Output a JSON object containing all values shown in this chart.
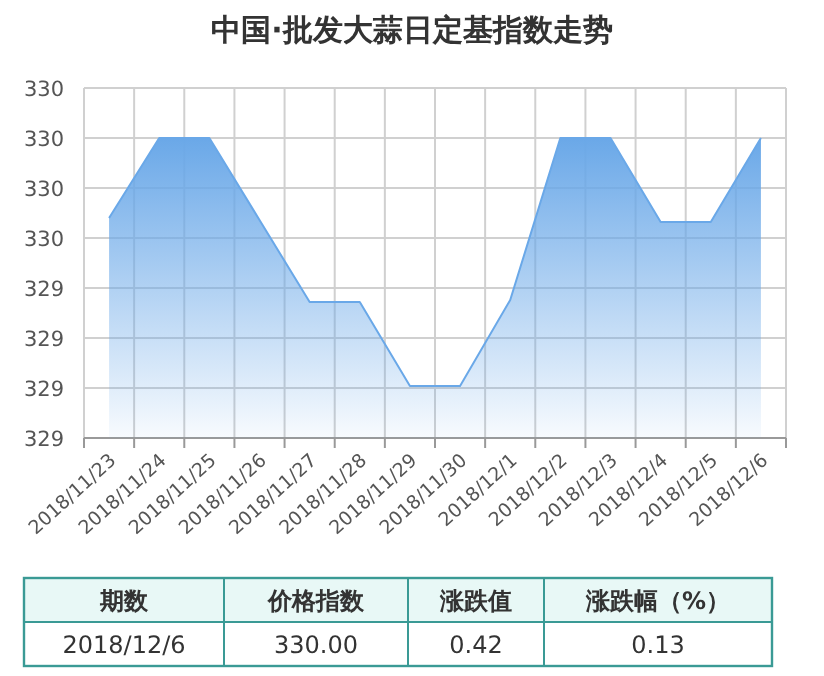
{
  "chart_data": {
    "type": "area",
    "title": "中国·批发大蒜日定基指数走势",
    "categories": [
      "2018/11/23",
      "2018/11/24",
      "2018/11/25",
      "2018/11/26",
      "2018/11/27",
      "2018/11/28",
      "2018/11/29",
      "2018/11/30",
      "2018/12/1",
      "2018/12/2",
      "2018/12/3",
      "2018/12/4",
      "2018/12/5",
      "2018/12/6"
    ],
    "series": [
      {
        "color": "#6aa8e8",
        "values": [
          329.6,
          330.0,
          330.0,
          329.59,
          329.18,
          329.18,
          328.76,
          328.76,
          329.19,
          330.0,
          330.0,
          329.58,
          329.58,
          330.0
        ]
      }
    ],
    "ylim": [
      328.5,
      330.25
    ],
    "yticks": [
      {
        "value": 328.5,
        "label": "329"
      },
      {
        "value": 328.75,
        "label": "329"
      },
      {
        "value": 329.0,
        "label": "329"
      },
      {
        "value": 329.25,
        "label": "329"
      },
      {
        "value": 329.5,
        "label": "330"
      },
      {
        "value": 329.75,
        "label": "330"
      },
      {
        "value": 330.0,
        "label": "330"
      },
      {
        "value": 330.25,
        "label": "330"
      }
    ],
    "grid": true,
    "marker": "none",
    "annotations": [
      "期数",
      "价格指数",
      "涨跌值",
      "涨跌幅（%）",
      "2018/12/6",
      "330.00",
      "0.42",
      "0.13"
    ]
  }
}
